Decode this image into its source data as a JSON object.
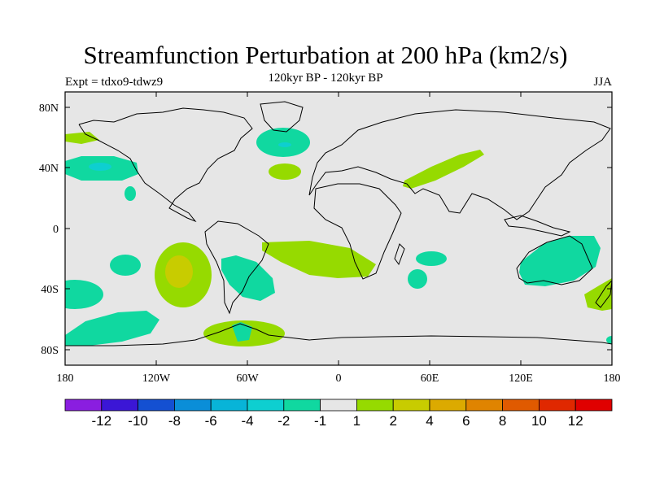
{
  "title": "Streamfunction Perturbation at 200 hPa (km2/s)",
  "subtitle": "120kyr BP - 120kyr BP",
  "left_label": "Expt = tdxo9-tdwz9",
  "right_label": "JJA",
  "axes": {
    "x_ticks": [
      "180",
      "120W",
      "60W",
      "0",
      "60E",
      "120E",
      "180"
    ],
    "y_ticks": [
      "80N",
      "40N",
      "0",
      "40S",
      "80S"
    ]
  },
  "colorbar": {
    "labels": [
      "-12",
      "-10",
      "-8",
      "-6",
      "-4",
      "-2",
      "-1",
      "1",
      "2",
      "4",
      "6",
      "8",
      "10",
      "12"
    ],
    "colors": [
      "#8a1ee0",
      "#3b16d6",
      "#1450d2",
      "#0a8ed8",
      "#08b4d8",
      "#0ecfd0",
      "#10d8a0",
      "#e6e6e6",
      "#96da00",
      "#c8cc00",
      "#dcaa00",
      "#e08400",
      "#e05a00",
      "#e02800",
      "#e00000"
    ]
  },
  "colors": {
    "background_field": "#e6e6e6",
    "neg_minus2": "#10d8a0",
    "pos_2": "#96da00",
    "pos_4": "#c8cc00"
  }
}
